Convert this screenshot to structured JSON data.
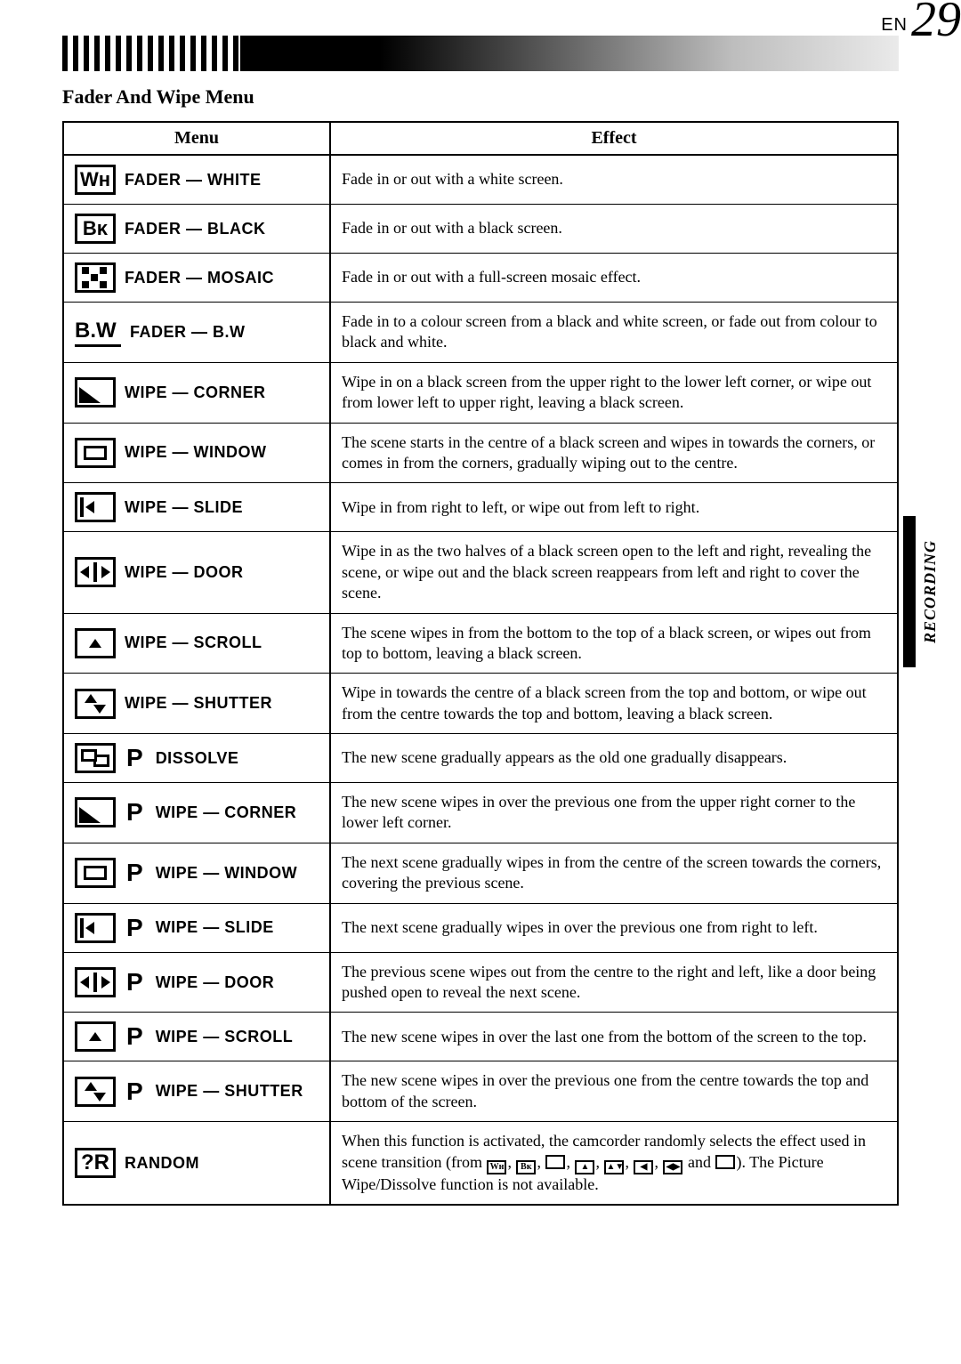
{
  "page": {
    "lang_prefix": "EN",
    "number": "29",
    "section_title": "Fader And Wipe Menu",
    "side_tab": "RECORDING",
    "table_headers": {
      "menu": "Menu",
      "effect": "Effect"
    }
  },
  "rows": [
    {
      "icon_text": "Wʜ",
      "label": "FADER — WHITE",
      "effect": "Fade in or out with a white screen."
    },
    {
      "icon_text": "Bᴋ",
      "label": "FADER — BLACK",
      "effect": "Fade in or out with a black screen."
    },
    {
      "icon_kind": "mosaic",
      "label": "FADER — MOSAIC",
      "effect": "Fade in or out with a full-screen mosaic effect."
    },
    {
      "icon_text": "B.W",
      "icon_class": "text-BW",
      "label": "FADER — B.W",
      "effect": "Fade in to a colour screen from a black and white screen, or fade out from colour to black and white."
    },
    {
      "icon_kind": "corner",
      "label": "WIPE — CORNER",
      "effect": "Wipe in on a black screen from the upper right to the lower left corner, or wipe out from lower left to upper right, leaving a black screen."
    },
    {
      "icon_kind": "window",
      "label": "WIPE — WINDOW",
      "effect": "The scene starts in the centre of a black screen and wipes in towards the corners, or comes in from the corners, gradually wiping out to the centre."
    },
    {
      "icon_kind": "slide",
      "label": "WIPE — SLIDE",
      "effect": "Wipe in from right to left, or wipe out from left to right."
    },
    {
      "icon_kind": "door",
      "label": "WIPE — DOOR",
      "effect": "Wipe in as the two halves of a black screen open to the left and right, revealing the scene, or wipe out and the black screen reappears from left and right to cover the scene."
    },
    {
      "icon_kind": "scroll",
      "label": "WIPE — SCROLL",
      "effect": "The scene wipes in from the bottom to the top of a black screen, or wipes out from top to bottom, leaving a black screen."
    },
    {
      "icon_kind": "shutter",
      "label": "WIPE — SHUTTER",
      "effect": "Wipe in towards the centre of a black screen from the top and bottom, or wipe out from the centre towards the top and bottom, leaving a black screen."
    },
    {
      "icon_kind": "dissolve",
      "p_badge": "P",
      "label": "DISSOLVE",
      "effect": "The new scene gradually appears as the old one gradually disappears."
    },
    {
      "icon_kind": "corner",
      "p_badge": "P",
      "label": "WIPE — CORNER",
      "effect": "The new scene wipes in over the previous one from the upper right corner to the lower left corner."
    },
    {
      "icon_kind": "window",
      "p_badge": "P",
      "label": "WIPE — WINDOW",
      "effect": "The next scene gradually wipes in from the centre of the screen towards the corners, covering the previous scene."
    },
    {
      "icon_kind": "slide",
      "p_badge": "P",
      "label": "WIPE — SLIDE",
      "effect": "The next scene gradually wipes in over the previous one from right to left."
    },
    {
      "icon_kind": "door",
      "p_badge": "P",
      "label": "WIPE — DOOR",
      "effect": "The previous scene wipes out from the centre to the right and left, like a door being pushed open to reveal the next scene."
    },
    {
      "icon_kind": "scroll",
      "p_badge": "P",
      "label": "WIPE — SCROLL",
      "effect": "The new scene wipes in over the last one from the bottom of the screen to the top."
    },
    {
      "icon_kind": "shutter",
      "p_badge": "P",
      "label": "WIPE — SHUTTER",
      "effect": "The new scene wipes in over the previous one from the centre towards the top and bottom of the screen."
    },
    {
      "icon_text": "?R",
      "icon_class": "text-QR",
      "label": "RANDOM",
      "effect_html": "When this function is activated, the camcorder randomly selects the effect used in scene transition (from <span class='mini-icon'>Wʜ</span>, <span class='mini-icon'>Bᴋ</span>, <span class='mini-icon'></span>, <span class='mini-icon'>▲</span>, <span class='mini-icon'>▲▼</span>, <span class='mini-icon'>◀</span>, <span class='mini-icon'>◀▶</span> and <span class='mini-icon'></span>). The Picture Wipe/Dissolve function is not available."
    }
  ]
}
